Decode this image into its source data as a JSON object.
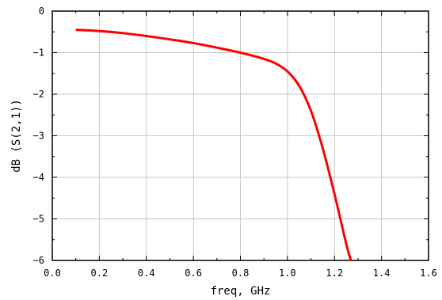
{
  "chart_data": {
    "type": "line",
    "title": "",
    "xlabel": "freq, GHz",
    "ylabel": "dB (S(2,1))",
    "xlim": [
      0.0,
      1.6
    ],
    "ylim": [
      -6,
      0
    ],
    "x_ticks": [
      "0.0",
      "0.2",
      "0.4",
      "0.6",
      "0.8",
      "1.0",
      "1.2",
      "1.4",
      "1.6"
    ],
    "y_ticks": [
      "0",
      "-1",
      "-2",
      "-3",
      "-4",
      "-5",
      "-6"
    ],
    "grid": true,
    "series": [
      {
        "color": "#ff0000",
        "x": [
          0.1,
          0.2,
          0.3,
          0.4,
          0.5,
          0.6,
          0.7,
          0.8,
          0.9,
          0.95,
          1.0,
          1.05,
          1.1,
          1.15,
          1.2,
          1.25,
          1.27
        ],
        "y": [
          -0.45,
          -0.48,
          -0.53,
          -0.6,
          -0.68,
          -0.77,
          -0.88,
          -1.0,
          -1.15,
          -1.26,
          -1.45,
          -1.8,
          -2.4,
          -3.3,
          -4.4,
          -5.6,
          -6.0
        ]
      }
    ]
  }
}
